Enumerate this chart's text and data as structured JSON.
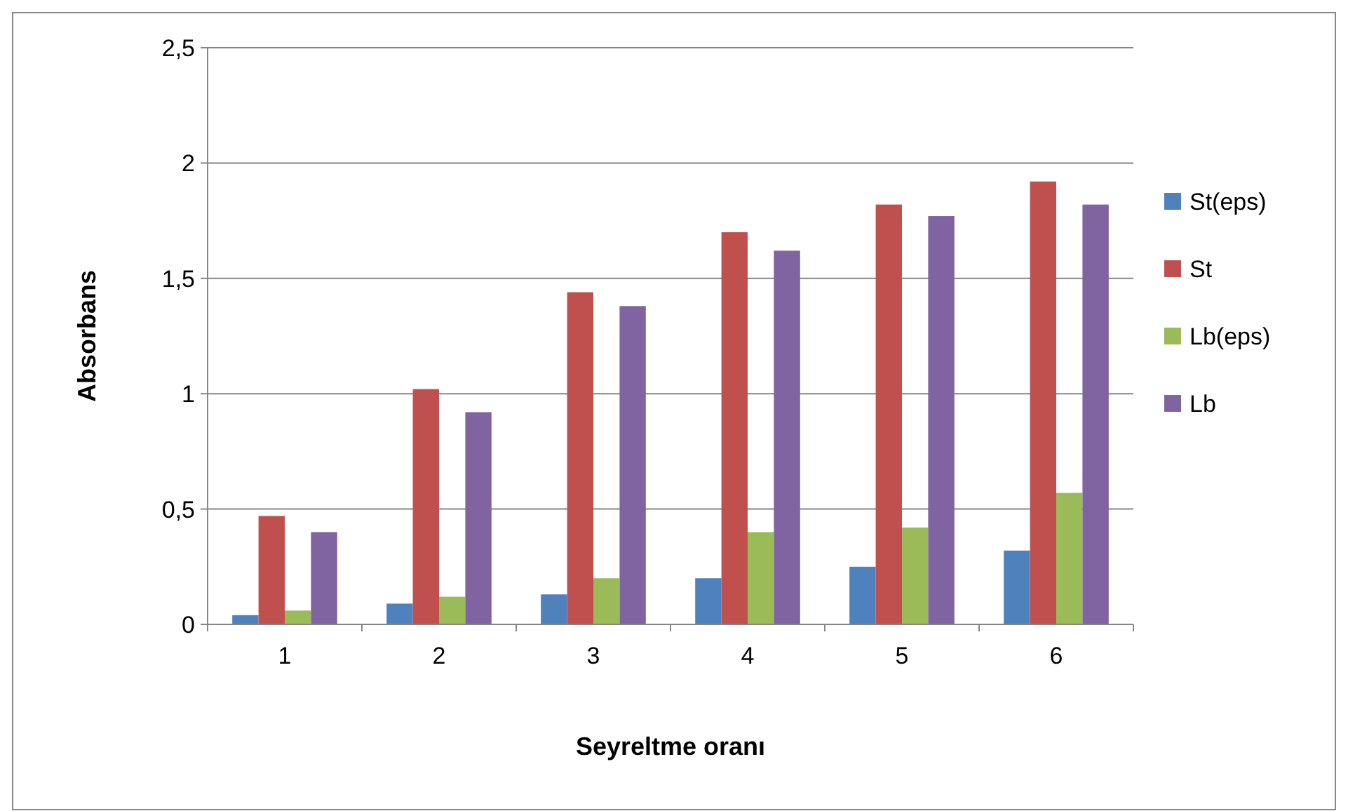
{
  "chart_data": {
    "type": "bar",
    "xlabel": "Seyreltme oranı",
    "ylabel": "Absorbans",
    "categories": [
      "1",
      "2",
      "3",
      "4",
      "5",
      "6"
    ],
    "series": [
      {
        "name": "St(eps)",
        "color": "#4f81bd",
        "values": [
          0.04,
          0.09,
          0.13,
          0.2,
          0.25,
          0.32
        ]
      },
      {
        "name": "St",
        "color": "#c0504d",
        "values": [
          0.47,
          1.02,
          1.44,
          1.7,
          1.82,
          1.92
        ]
      },
      {
        "name": "Lb(eps)",
        "color": "#9bbb59",
        "values": [
          0.06,
          0.12,
          0.2,
          0.4,
          0.42,
          0.57
        ]
      },
      {
        "name": "Lb",
        "color": "#8064a2",
        "values": [
          0.4,
          0.92,
          1.38,
          1.62,
          1.77,
          1.82
        ]
      }
    ],
    "ylim": [
      0,
      2.5
    ],
    "yticks": [
      0,
      {
        "value": 0.5,
        "label": "0,5"
      },
      1,
      {
        "value": 1.5,
        "label": "1,5"
      },
      2,
      {
        "value": 2.5,
        "label": "2,5"
      }
    ],
    "grid": "y",
    "legend": "right"
  }
}
